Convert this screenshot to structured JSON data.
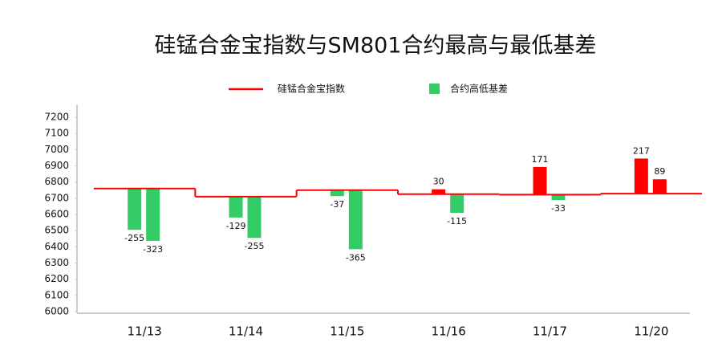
{
  "chart_data": {
    "type": "step-line-bar",
    "title": "硅锰合金宝指数与SM801合约最高与最低基差",
    "categories": [
      "11/13",
      "11/14",
      "11/15",
      "11/16",
      "11/17",
      "11/20"
    ],
    "series": [
      {
        "name": "硅锰合金宝指数",
        "color": "#ff0000",
        "values": [
          6760,
          6710,
          6750,
          6725,
          6722,
          6728
        ]
      },
      {
        "name": "合约高低基差",
        "color": "#33cc66",
        "positive_color": "#ff0000",
        "high": [
          -255,
          -129,
          -37,
          30,
          171,
          217
        ],
        "low": [
          -323,
          -255,
          -365,
          -115,
          -33,
          89
        ]
      }
    ],
    "ylim": [
      6000,
      7200
    ],
    "yticks": [
      6000,
      6100,
      6200,
      6300,
      6400,
      6500,
      6600,
      6700,
      6800,
      6900,
      7000,
      7100,
      7200
    ],
    "grid": false
  }
}
